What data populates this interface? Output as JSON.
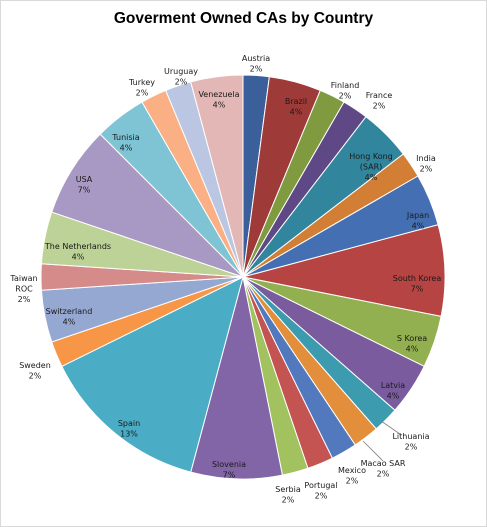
{
  "chart_data": {
    "type": "pie",
    "title": "Goverment Owned CAs by Country",
    "labels": [
      "Austria",
      "Brazil",
      "Finland",
      "France",
      "Hong Kong (SAR)",
      "India",
      "Japan",
      "South Korea",
      "S Korea",
      "Latvia",
      "Lithuania",
      "Macao SAR",
      "Mexico",
      "Portugal",
      "Serbia",
      "Slovenia",
      "Spain",
      "Sweden",
      "Switzerland",
      "Taiwan ROC",
      "The Netherlands",
      "USA",
      "Tunisia",
      "Turkey",
      "Uruguay",
      "Venezuela"
    ],
    "label_lines": [
      [
        "Austria"
      ],
      [
        "Brazil"
      ],
      [
        "Finland"
      ],
      [
        "France"
      ],
      [
        "Hong Kong",
        "(SAR)"
      ],
      [
        "India"
      ],
      [
        "Japan"
      ],
      [
        "South Korea"
      ],
      [
        "S Korea"
      ],
      [
        "Latvia"
      ],
      [
        "Lithuania"
      ],
      [
        "Macao SAR"
      ],
      [
        "Mexico"
      ],
      [
        "Portugal"
      ],
      [
        "Serbia"
      ],
      [
        "Slovenia"
      ],
      [
        "Spain"
      ],
      [
        "Sweden"
      ],
      [
        "Switzerland"
      ],
      [
        "Taiwan",
        "ROC"
      ],
      [
        "The Netherlands"
      ],
      [
        "USA"
      ],
      [
        "Tunisia"
      ],
      [
        "Turkey"
      ],
      [
        "Uruguay"
      ],
      [
        "Venezuela"
      ]
    ],
    "values": [
      2,
      4,
      2,
      2,
      4,
      2,
      4,
      7,
      4,
      4,
      2,
      2,
      2,
      2,
      2,
      7,
      13,
      2,
      4,
      2,
      4,
      7,
      4,
      2,
      2,
      4
    ],
    "value_labels": [
      "2%",
      "4%",
      "2%",
      "2%",
      "4%",
      "2%",
      "4%",
      "7%",
      "4%",
      "4%",
      "2%",
      "2%",
      "2%",
      "2%",
      "2%",
      "7%",
      "13%",
      "2%",
      "4%",
      "2%",
      "4%",
      "7%",
      "4%",
      "2%",
      "2%",
      "4%"
    ],
    "colors": [
      "#3A5F9B",
      "#9E3B38",
      "#7F9A3F",
      "#5E4885",
      "#31859C",
      "#D27E34",
      "#4470B3",
      "#B54442",
      "#92B050",
      "#7A5C9E",
      "#3C9BAF",
      "#E28E3A",
      "#5279BE",
      "#C45451",
      "#A2C15F",
      "#8165A6",
      "#4BACC6",
      "#F79646",
      "#95A8D2",
      "#D58B8A",
      "#BDD296",
      "#A898C4",
      "#7FC4D5",
      "#FBAF84",
      "#BBC7E2",
      "#E3B7B6"
    ]
  }
}
